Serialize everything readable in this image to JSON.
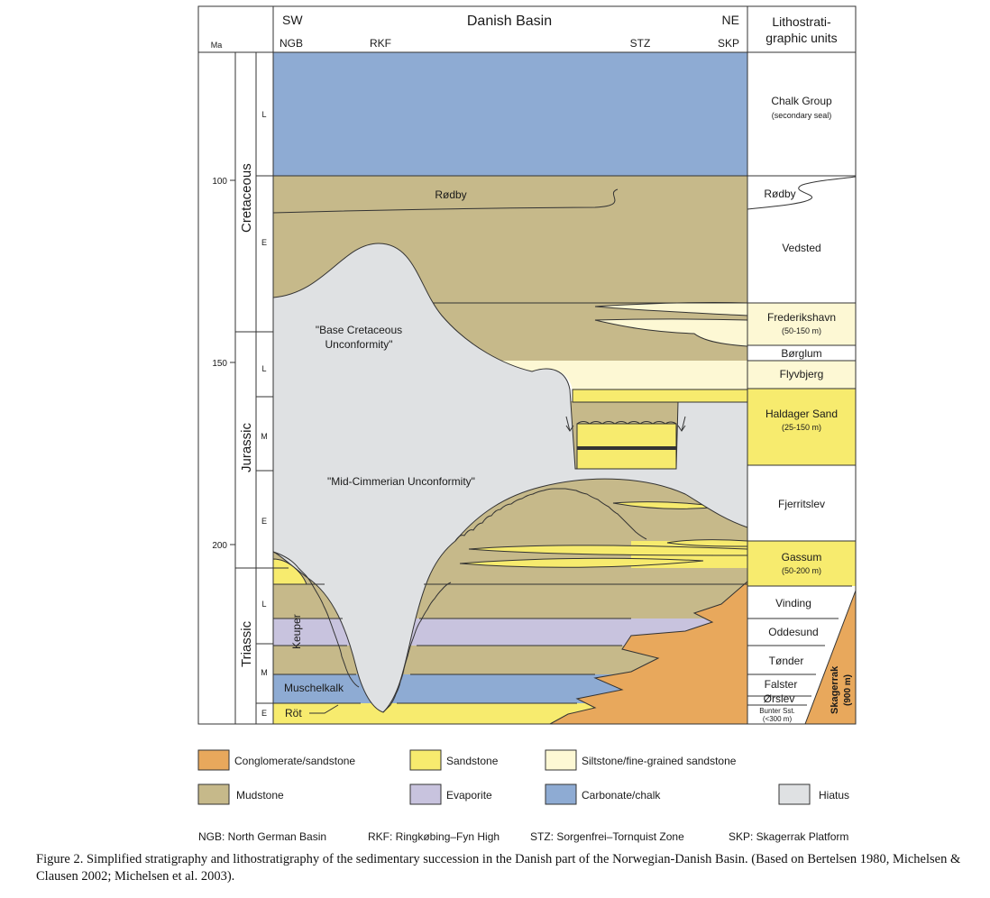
{
  "header": {
    "ma_label": "Ma",
    "sw": "SW",
    "ne": "NE",
    "basin_title": "Danish Basin",
    "ngb": "NGB",
    "rkf": "RKF",
    "stz": "STZ",
    "skp": "SKP",
    "litho_title_line1": "Lithostrati-",
    "litho_title_line2": "graphic units"
  },
  "age_axis": {
    "ticks": [
      "100",
      "150",
      "200"
    ]
  },
  "periods": {
    "cretaceous": {
      "name": "Cretaceous",
      "epochs": [
        "L",
        "E"
      ]
    },
    "jurassic": {
      "name": "Jurassic",
      "epochs": [
        "L",
        "M",
        "E"
      ]
    },
    "triassic": {
      "name": "Triassic",
      "epochs": [
        "L",
        "M",
        "E"
      ]
    }
  },
  "section_labels": {
    "rodby": "Rødby",
    "base_cretaceous_line1": "\"Base Cretaceous",
    "base_cretaceous_line2": "Unconformity\"",
    "mid_cimmerian": "\"Mid-Cimmerian Unconformity\"",
    "keuper": "Keuper",
    "muschelkalk": "Muschelkalk",
    "rot": "Röt"
  },
  "units": {
    "chalk_group": "Chalk Group",
    "chalk_note": "(secondary seal)",
    "rodby": "Rødby",
    "vedsted": "Vedsted",
    "frederikshavn": "Frederikshavn",
    "frederikshavn_note": "(50-150 m)",
    "borglum": "Børglum",
    "flyvbjerg": "Flyvbjerg",
    "haldager": "Haldager Sand",
    "haldager_note": "(25-150 m)",
    "fjerritslev": "Fjerritslev",
    "gassum": "Gassum",
    "gassum_note": "(50-200 m)",
    "vinding": "Vinding",
    "oddesund": "Oddesund",
    "tonder": "Tønder",
    "falster": "Falster",
    "orslev": "Ørslev",
    "bunter_line1": "Bunter Sst.",
    "bunter_line2": "(<300 m)",
    "skagerrak": "Skagerrak",
    "skagerrak_note": "(900 m)"
  },
  "legend": [
    {
      "label": "Conglomerate/sandstone",
      "color": "#e8a85c"
    },
    {
      "label": "Sandstone",
      "color": "#f7eb6e"
    },
    {
      "label": "Siltstone/fine-grained sandstone",
      "color": "#fdf8d4"
    },
    {
      "label": "Mudstone",
      "color": "#c6b98a"
    },
    {
      "label": "Evaporite",
      "color": "#c8c3de"
    },
    {
      "label": "Carbonate/chalk",
      "color": "#8eabd3"
    },
    {
      "label": "Hiatus",
      "color": "#dfe1e3"
    }
  ],
  "abbreviations": [
    "NGB: North German Basin",
    "RKF: Ringkøbing–Fyn High",
    "STZ: Sorgenfrei–Tornquist Zone",
    "SKP: Skagerrak Platform"
  ],
  "caption": "Figure 2.   Simplified stratigraphy and lithostratigraphy of the sedimentary succession in the Danish part of the Norwegian-Danish Basin. (Based on Bertelsen 1980, Michelsen & Clausen 2002; Michelsen et al. 2003)."
}
